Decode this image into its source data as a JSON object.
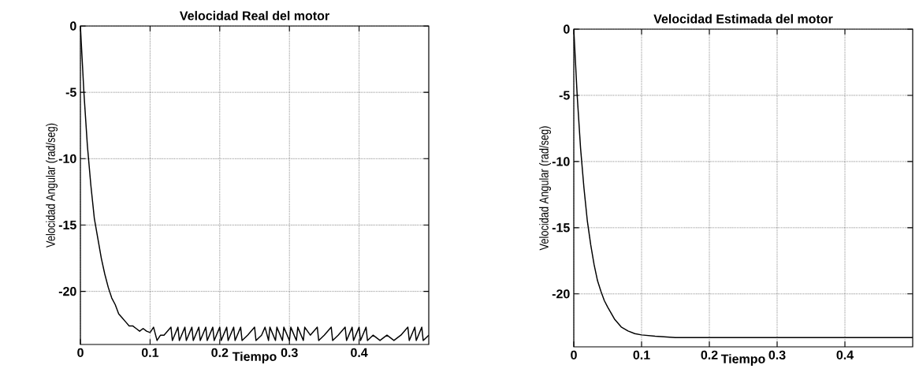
{
  "chart_data": [
    {
      "type": "line",
      "title": "Velocidad Real del motor",
      "xlabel": "Tiempo",
      "ylabel": "Velocidad Angular (rad/seg)",
      "xlim": [
        0,
        0.5
      ],
      "ylim": [
        -24,
        0
      ],
      "xticks": [
        0,
        0.1,
        0.2,
        0.3,
        0.4
      ],
      "yticks": [
        0,
        -5,
        -10,
        -15,
        -20
      ],
      "grid": true,
      "series": [
        {
          "color": "#000000",
          "x": [
            0,
            0.005,
            0.01,
            0.015,
            0.02,
            0.025,
            0.03,
            0.035,
            0.04,
            0.045,
            0.05,
            0.055,
            0.06,
            0.065,
            0.07,
            0.075,
            0.08,
            0.085,
            0.09,
            0.095,
            0.1,
            0.105,
            0.11,
            0.115,
            0.12,
            0.13,
            0.132,
            0.14,
            0.142,
            0.15,
            0.152,
            0.16,
            0.162,
            0.17,
            0.172,
            0.18,
            0.182,
            0.19,
            0.192,
            0.2,
            0.202,
            0.21,
            0.212,
            0.22,
            0.222,
            0.23,
            0.232,
            0.24,
            0.25,
            0.252,
            0.26,
            0.265,
            0.27,
            0.272,
            0.28,
            0.282,
            0.29,
            0.292,
            0.3,
            0.302,
            0.31,
            0.312,
            0.32,
            0.322,
            0.33,
            0.34,
            0.342,
            0.35,
            0.36,
            0.362,
            0.37,
            0.38,
            0.382,
            0.39,
            0.392,
            0.4,
            0.402,
            0.41,
            0.412,
            0.42,
            0.43,
            0.44,
            0.45,
            0.46,
            0.47,
            0.472,
            0.48,
            0.482,
            0.49,
            0.492,
            0.5
          ],
          "values": [
            0,
            -5,
            -9,
            -12,
            -14.5,
            -16,
            -17.5,
            -18.7,
            -19.7,
            -20.5,
            -21,
            -21.7,
            -22,
            -22.3,
            -22.6,
            -22.6,
            -22.8,
            -23,
            -22.8,
            -23,
            -23.1,
            -22.7,
            -23.7,
            -23.3,
            -23.3,
            -22.7,
            -23.7,
            -22.7,
            -23.7,
            -22.7,
            -23.7,
            -22.7,
            -23.7,
            -22.7,
            -23.7,
            -22.7,
            -23.7,
            -22.7,
            -23.7,
            -22.7,
            -23.7,
            -22.7,
            -23.7,
            -22.7,
            -23.7,
            -22.7,
            -23.7,
            -23.3,
            -22.7,
            -23.7,
            -23.3,
            -22.7,
            -23.7,
            -22.7,
            -23.7,
            -22.7,
            -23.7,
            -22.7,
            -23.7,
            -22.7,
            -23.7,
            -22.7,
            -23.7,
            -22.7,
            -23.3,
            -22.7,
            -23.7,
            -23.3,
            -22.7,
            -23.7,
            -23.3,
            -22.7,
            -23.7,
            -22.7,
            -23.7,
            -22.7,
            -23.7,
            -22.7,
            -23.7,
            -23.3,
            -23.7,
            -23.3,
            -23.7,
            -23.3,
            -22.7,
            -23.7,
            -22.7,
            -23.7,
            -22.7,
            -23.7,
            -23.3
          ]
        }
      ]
    },
    {
      "type": "line",
      "title": "Velocidad Estimada del motor",
      "xlabel": "Tiempo",
      "ylabel": "Velocidad Angular (rad/seg)",
      "xlim": [
        0,
        0.5
      ],
      "ylim": [
        -24,
        0
      ],
      "xticks": [
        0,
        0.1,
        0.2,
        0.3,
        0.4
      ],
      "yticks": [
        0,
        -5,
        -10,
        -15,
        -20
      ],
      "grid": true,
      "series": [
        {
          "color": "#000000",
          "x": [
            0,
            0.005,
            0.01,
            0.015,
            0.02,
            0.025,
            0.03,
            0.035,
            0.04,
            0.045,
            0.05,
            0.06,
            0.07,
            0.08,
            0.09,
            0.1,
            0.12,
            0.15,
            0.2,
            0.3,
            0.4,
            0.5
          ],
          "values": [
            0,
            -5,
            -9,
            -12,
            -14.5,
            -16.3,
            -17.8,
            -19,
            -19.8,
            -20.5,
            -21,
            -21.9,
            -22.5,
            -22.8,
            -23,
            -23.1,
            -23.2,
            -23.3,
            -23.3,
            -23.3,
            -23.3,
            -23.3
          ]
        }
      ]
    }
  ]
}
